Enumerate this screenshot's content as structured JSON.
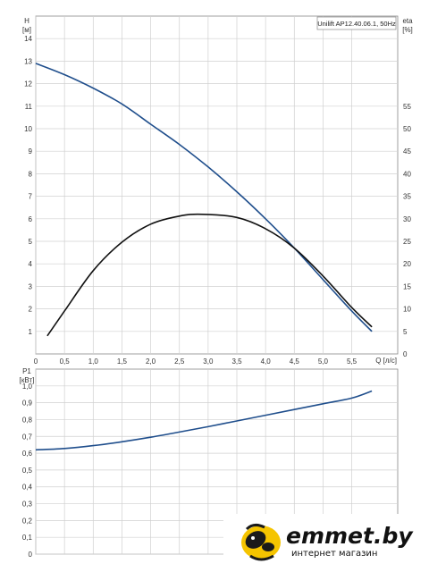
{
  "chart_data": [
    {
      "type": "line",
      "legend": "Unilift AP12.40.06.1, 50Hz",
      "legend_position": "top-right",
      "grid": true,
      "xlabel": "Q [л/с]",
      "xlim": [
        0,
        6.3
      ],
      "x_ticks": [
        "0",
        "0,5",
        "1,0",
        "1,5",
        "2,0",
        "2,5",
        "3,0",
        "3,5",
        "4,0",
        "4,5",
        "5,0",
        "5,5"
      ],
      "x_tick_values": [
        0,
        0.5,
        1.0,
        1.5,
        2.0,
        2.5,
        3.0,
        3.5,
        4.0,
        4.5,
        5.0,
        5.5
      ],
      "y_left": {
        "label": "H",
        "unit": "[м]",
        "ylim": [
          0,
          15
        ],
        "ticks": [
          "1",
          "2",
          "3",
          "4",
          "5",
          "6",
          "7",
          "8",
          "9",
          "10",
          "11",
          "12",
          "13",
          "14"
        ],
        "tick_values": [
          1,
          2,
          3,
          4,
          5,
          6,
          7,
          8,
          9,
          10,
          11,
          12,
          13,
          14
        ]
      },
      "y_right": {
        "label": "eta",
        "unit": "[%]",
        "ylim": [
          0,
          75
        ],
        "ticks": [
          "0",
          "5",
          "10",
          "15",
          "20",
          "25",
          "30",
          "35",
          "40",
          "45",
          "50",
          "55"
        ],
        "tick_values": [
          0,
          5,
          10,
          15,
          20,
          25,
          30,
          35,
          40,
          45,
          50,
          55
        ]
      },
      "series": [
        {
          "axis": "left",
          "color": "#1f4e8c",
          "x": [
            0,
            0.5,
            1.0,
            1.5,
            2.0,
            2.5,
            3.0,
            3.5,
            4.0,
            4.5,
            5.0,
            5.5,
            5.85
          ],
          "y": [
            12.9,
            12.4,
            11.8,
            11.1,
            10.2,
            9.3,
            8.3,
            7.2,
            6.0,
            4.7,
            3.3,
            1.9,
            1.0
          ]
        },
        {
          "axis": "right",
          "color": "#111111",
          "x": [
            0.2,
            0.5,
            1.0,
            1.5,
            2.0,
            2.5,
            2.9,
            3.5,
            4.0,
            4.5,
            5.0,
            5.5,
            5.85
          ],
          "y": [
            4,
            9.5,
            18.5,
            24.8,
            28.8,
            30.6,
            31.0,
            30.3,
            27.8,
            23.5,
            17.3,
            10.3,
            6.0
          ]
        }
      ]
    },
    {
      "type": "line",
      "grid": true,
      "xlim": [
        0,
        6.3
      ],
      "y_left": {
        "label": "P1",
        "unit": "[кВт]",
        "ylim": [
          0,
          1.1
        ],
        "ticks": [
          "0",
          "0,1",
          "0,2",
          "0,3",
          "0,4",
          "0,5",
          "0,6",
          "0,7",
          "0,8",
          "0,9",
          "1,0"
        ],
        "tick_values": [
          0,
          0.1,
          0.2,
          0.3,
          0.4,
          0.5,
          0.6,
          0.7,
          0.8,
          0.9,
          1.0
        ]
      },
      "series": [
        {
          "color": "#1f4e8c",
          "x": [
            0,
            0.5,
            1.0,
            1.5,
            2.0,
            2.5,
            3.0,
            3.5,
            4.0,
            4.5,
            5.0,
            5.5,
            5.85
          ],
          "y": [
            0.62,
            0.628,
            0.645,
            0.668,
            0.695,
            0.726,
            0.758,
            0.792,
            0.826,
            0.86,
            0.894,
            0.928,
            0.97
          ]
        }
      ]
    }
  ],
  "watermark": {
    "brand": "emmet.by",
    "subtitle": "интернет магазин"
  }
}
